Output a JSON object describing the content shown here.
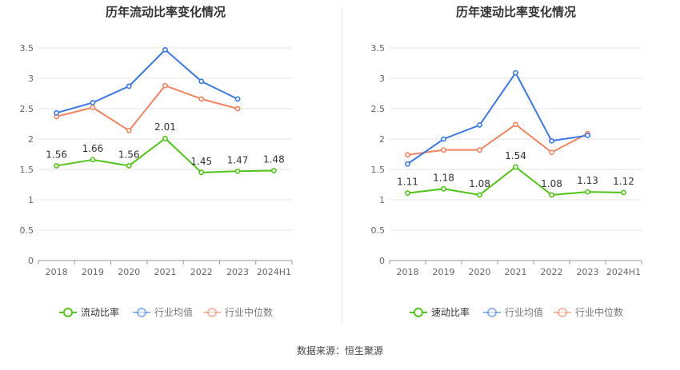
{
  "colors": {
    "primary": "#52c41a",
    "average": "#3a78e7",
    "median": "#f0845e",
    "grid": "#e6e6e6",
    "axis": "#666666"
  },
  "chart_data": [
    {
      "type": "line",
      "title": "历年流动比率变化情况",
      "categories": [
        "2018",
        "2019",
        "2020",
        "2021",
        "2022",
        "2023",
        "2024H1"
      ],
      "ylim": [
        0,
        3.5
      ],
      "yticks": [
        "0",
        "0.5",
        "1",
        "1.5",
        "2",
        "2.5",
        "3",
        "3.5"
      ],
      "grid": true,
      "legend_position": "bottom",
      "series": [
        {
          "name": "流动比率",
          "role": "primary",
          "values": [
            1.56,
            1.66,
            1.56,
            2.01,
            1.45,
            1.47,
            1.48
          ],
          "labels": [
            "1.56",
            "1.66",
            "1.56",
            "2.01",
            "1.45",
            "1.47",
            "1.48"
          ]
        },
        {
          "name": "行业均值",
          "role": "average",
          "values": [
            2.43,
            2.6,
            2.87,
            3.47,
            2.95,
            2.66,
            null
          ]
        },
        {
          "name": "行业中位数",
          "role": "median",
          "values": [
            2.37,
            2.52,
            2.14,
            2.88,
            2.66,
            2.5,
            null
          ]
        }
      ]
    },
    {
      "type": "line",
      "title": "历年速动比率变化情况",
      "categories": [
        "2018",
        "2019",
        "2020",
        "2021",
        "2022",
        "2023",
        "2024H1"
      ],
      "ylim": [
        0,
        3.5
      ],
      "yticks": [
        "0",
        "0.5",
        "1",
        "1.5",
        "2",
        "2.5",
        "3",
        "3.5"
      ],
      "grid": true,
      "legend_position": "bottom",
      "series": [
        {
          "name": "速动比率",
          "role": "primary",
          "values": [
            1.11,
            1.18,
            1.08,
            1.54,
            1.08,
            1.13,
            1.12
          ],
          "labels": [
            "1.11",
            "1.18",
            "1.08",
            "1.54",
            "1.08",
            "1.13",
            "1.12"
          ]
        },
        {
          "name": "行业均值",
          "role": "average",
          "values": [
            1.59,
            2.0,
            2.23,
            3.09,
            1.97,
            2.06,
            null
          ]
        },
        {
          "name": "行业中位数",
          "role": "median",
          "values": [
            1.74,
            1.82,
            1.82,
            2.24,
            1.78,
            2.09,
            null
          ]
        }
      ]
    }
  ],
  "footer": {
    "source": "数据来源：恒生聚源"
  }
}
